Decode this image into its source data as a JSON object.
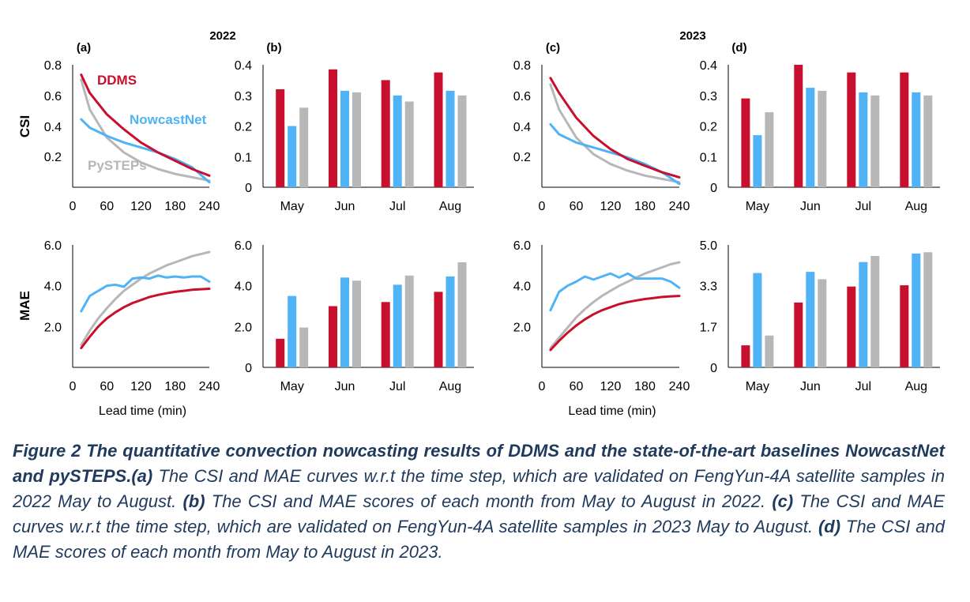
{
  "colors": {
    "DDMS": "#c8102e",
    "NowcastNet": "#4fb3f6",
    "PySTEPs": "#b7b7b7"
  },
  "caption": {
    "figure_label": "Figure 2 The quantitative convection nowcasting results of DDMS and the state-of-the-art baselines NowcastNet and pySTEPS.",
    "a_label": "(a)",
    "a_text": " The CSI and MAE curves w.r.t the time step, which are validated on FengYun-4A satellite samples in 2022 May to August. ",
    "b_label": "(b)",
    "b_text": " The CSI and MAE scores of each month from May to August in 2022. ",
    "c_label": "(c)",
    "c_text": " The CSI and MAE curves w.r.t the time step, which are validated on FengYun-4A satellite samples in 2023 May to August. ",
    "d_label": "(d)",
    "d_text": " The CSI and MAE scores of each month from May to August in 2023."
  },
  "chart_data": [
    {
      "panel": "(a)",
      "group_title": "2022",
      "type": "line",
      "row_label": "CSI",
      "x": [
        15,
        30,
        60,
        90,
        120,
        150,
        180,
        210,
        240
      ],
      "xticks": [
        "0",
        "60",
        "120",
        "180",
        "240"
      ],
      "yticks": [
        "0.2",
        "0.4",
        "0.6",
        "0.8"
      ],
      "ylim": [
        0.08,
        0.82
      ],
      "series": [
        {
          "name": "DDMS",
          "values": [
            0.76,
            0.65,
            0.52,
            0.43,
            0.35,
            0.29,
            0.24,
            0.19,
            0.15
          ]
        },
        {
          "name": "NowcastNet",
          "values": [
            0.49,
            0.44,
            0.39,
            0.35,
            0.32,
            0.29,
            0.25,
            0.2,
            0.11
          ]
        },
        {
          "name": "PySTEPs",
          "values": [
            0.73,
            0.55,
            0.38,
            0.29,
            0.23,
            0.19,
            0.16,
            0.14,
            0.12
          ]
        }
      ]
    },
    {
      "panel": "(b)",
      "type": "bar",
      "row_label": "CSI",
      "categories": [
        "May",
        "Jun",
        "Jul",
        "Aug"
      ],
      "yticks": [
        "0",
        "0.1",
        "0.2",
        "0.3",
        "0.4"
      ],
      "ylim": [
        0,
        0.4
      ],
      "series": [
        {
          "name": "DDMS",
          "values": [
            0.32,
            0.385,
            0.35,
            0.375
          ]
        },
        {
          "name": "NowcastNet",
          "values": [
            0.2,
            0.315,
            0.3,
            0.315
          ]
        },
        {
          "name": "PySTEPs",
          "values": [
            0.26,
            0.31,
            0.28,
            0.3
          ]
        }
      ]
    },
    {
      "panel": "(c)",
      "group_title": "2023",
      "type": "line",
      "row_label": "CSI",
      "x": [
        15,
        30,
        60,
        90,
        120,
        150,
        180,
        210,
        240
      ],
      "xticks": [
        "0",
        "60",
        "120",
        "180",
        "240"
      ],
      "yticks": [
        "0.2",
        "0.4",
        "0.6",
        "0.8"
      ],
      "ylim": [
        0.08,
        0.82
      ],
      "series": [
        {
          "name": "DDMS",
          "values": [
            0.74,
            0.65,
            0.5,
            0.39,
            0.31,
            0.25,
            0.21,
            0.17,
            0.14
          ]
        },
        {
          "name": "NowcastNet",
          "values": [
            0.46,
            0.4,
            0.35,
            0.32,
            0.29,
            0.26,
            0.22,
            0.17,
            0.1
          ]
        },
        {
          "name": "PySTEPs",
          "values": [
            0.7,
            0.55,
            0.38,
            0.28,
            0.22,
            0.18,
            0.15,
            0.13,
            0.11
          ]
        }
      ]
    },
    {
      "panel": "(d)",
      "type": "bar",
      "row_label": "CSI",
      "categories": [
        "May",
        "Jun",
        "Jul",
        "Aug"
      ],
      "yticks": [
        "0",
        "0.1",
        "0.2",
        "0.3",
        "0.4"
      ],
      "ylim": [
        0,
        0.4
      ],
      "series": [
        {
          "name": "DDMS",
          "values": [
            0.29,
            0.4,
            0.375,
            0.375
          ]
        },
        {
          "name": "NowcastNet",
          "values": [
            0.17,
            0.325,
            0.31,
            0.31
          ]
        },
        {
          "name": "PySTEPs",
          "values": [
            0.245,
            0.315,
            0.3,
            0.3
          ]
        }
      ]
    },
    {
      "type": "line",
      "row_label": "MAE",
      "xlabel": "Lead time (min)",
      "x": [
        15,
        30,
        45,
        60,
        75,
        90,
        105,
        120,
        135,
        150,
        165,
        180,
        195,
        210,
        225,
        240
      ],
      "xticks": [
        "0",
        "60",
        "120",
        "180",
        "240"
      ],
      "yticks": [
        "2.0",
        "4.0",
        "6.0"
      ],
      "ylim": [
        0,
        6
      ],
      "series": [
        {
          "name": "DDMS",
          "values": [
            0.95,
            1.5,
            2.0,
            2.4,
            2.7,
            2.95,
            3.15,
            3.3,
            3.45,
            3.55,
            3.63,
            3.7,
            3.75,
            3.8,
            3.83,
            3.85
          ]
        },
        {
          "name": "NowcastNet",
          "values": [
            2.75,
            3.5,
            3.75,
            4.0,
            4.05,
            3.95,
            4.35,
            4.4,
            4.35,
            4.5,
            4.4,
            4.45,
            4.4,
            4.45,
            4.45,
            4.2
          ]
        },
        {
          "name": "PySTEPs",
          "values": [
            1.1,
            1.8,
            2.4,
            2.9,
            3.35,
            3.75,
            4.05,
            4.35,
            4.6,
            4.8,
            5.0,
            5.15,
            5.3,
            5.45,
            5.55,
            5.65
          ]
        }
      ]
    },
    {
      "type": "bar",
      "row_label": "MAE",
      "categories": [
        "May",
        "Jun",
        "Jul",
        "Aug"
      ],
      "yticks": [
        "0",
        "2.0",
        "4.0",
        "6.0"
      ],
      "ylim": [
        0,
        6
      ],
      "series": [
        {
          "name": "DDMS",
          "values": [
            1.4,
            3.0,
            3.2,
            3.7
          ]
        },
        {
          "name": "NowcastNet",
          "values": [
            3.5,
            4.4,
            4.05,
            4.45
          ]
        },
        {
          "name": "PySTEPs",
          "values": [
            1.95,
            4.25,
            4.5,
            5.15
          ]
        }
      ]
    },
    {
      "type": "line",
      "row_label": "MAE",
      "xlabel": "Lead time (min)",
      "x": [
        15,
        30,
        45,
        60,
        75,
        90,
        105,
        120,
        135,
        150,
        165,
        180,
        195,
        210,
        225,
        240
      ],
      "xticks": [
        "0",
        "60",
        "120",
        "180",
        "240"
      ],
      "yticks": [
        "2.0",
        "4.0",
        "6.0"
      ],
      "ylim": [
        0,
        6
      ],
      "series": [
        {
          "name": "DDMS",
          "values": [
            0.85,
            1.3,
            1.7,
            2.05,
            2.35,
            2.6,
            2.8,
            2.95,
            3.1,
            3.2,
            3.28,
            3.35,
            3.4,
            3.45,
            3.48,
            3.5
          ]
        },
        {
          "name": "NowcastNet",
          "values": [
            2.8,
            3.7,
            4.0,
            4.2,
            4.45,
            4.3,
            4.45,
            4.6,
            4.4,
            4.6,
            4.35,
            4.35,
            4.35,
            4.35,
            4.2,
            3.9
          ]
        },
        {
          "name": "PySTEPs",
          "values": [
            0.95,
            1.45,
            1.95,
            2.45,
            2.85,
            3.2,
            3.5,
            3.75,
            4.0,
            4.2,
            4.4,
            4.6,
            4.75,
            4.9,
            5.05,
            5.15
          ]
        }
      ]
    },
    {
      "type": "bar",
      "row_label": "MAE",
      "categories": [
        "May",
        "Jun",
        "Jul",
        "Aug"
      ],
      "yticks": [
        "0",
        "1.7",
        "3.3",
        "5.0"
      ],
      "ylim": [
        0,
        5
      ],
      "series": [
        {
          "name": "DDMS",
          "values": [
            0.9,
            2.65,
            3.3,
            3.35
          ]
        },
        {
          "name": "NowcastNet",
          "values": [
            3.85,
            3.9,
            4.3,
            4.65
          ]
        },
        {
          "name": "PySTEPs",
          "values": [
            1.3,
            3.6,
            4.55,
            4.7
          ]
        }
      ]
    }
  ]
}
